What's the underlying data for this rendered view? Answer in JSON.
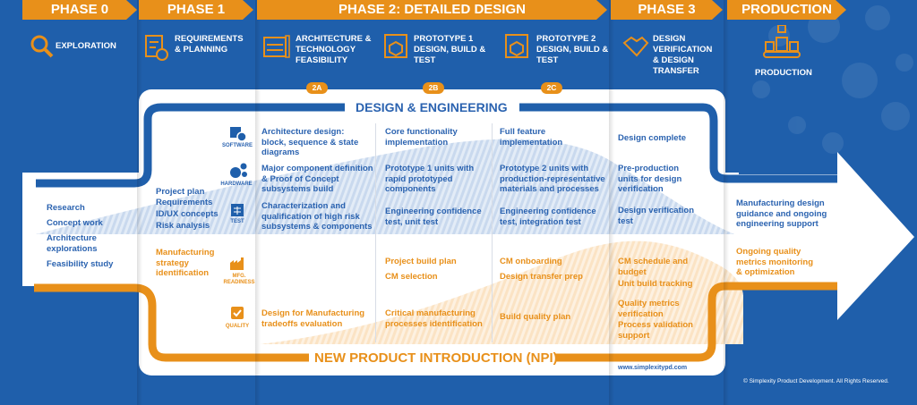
{
  "colors": {
    "blue": "#1f5fab",
    "orange": "#e8901a",
    "white": "#ffffff"
  },
  "phases": [
    "PHASE 0",
    "PHASE 1",
    "PHASE 2: DETAILED DESIGN",
    "PHASE 3",
    "PRODUCTION"
  ],
  "stages": [
    {
      "label": "EXPLORATION",
      "icon": "magnifier-icon"
    },
    {
      "label": "REQUIREMENTS & PLANNING",
      "icon": "checklist-icon"
    },
    {
      "label": "ARCHITECTURE & TECHNOLOGY FEASIBILITY",
      "icon": "blueprint-icon",
      "badge": "2A"
    },
    {
      "label": "PROTOTYPE 1 DESIGN, BUILD & TEST",
      "icon": "3d-printer-icon",
      "badge": "2B"
    },
    {
      "label": "PROTOTYPE 2 DESIGN, BUILD & TEST",
      "icon": "3d-printer-icon",
      "badge": "2C"
    },
    {
      "label": "DESIGN VERIFICATION & DESIGN TRANSFER",
      "icon": "handshake-icon"
    },
    {
      "label": "PRODUCTION",
      "icon": "assembly-line-icon"
    }
  ],
  "sections": {
    "design": "DESIGN & ENGINEERING",
    "npi": "NEW PRODUCT INTRODUCTION (NPI)"
  },
  "categories": {
    "software": "SOFTWARE",
    "hardware": "HARDWARE",
    "test": "TEST",
    "mfg": "MFG. READINESS",
    "quality": "QUALITY"
  },
  "phase0": [
    "Research",
    "Concept work",
    "Architecture explorations",
    "Feasibility study"
  ],
  "phase1": {
    "design": [
      "Project plan",
      "Requirements",
      "ID/UX concepts",
      "Risk analysis"
    ],
    "npi": "Manufacturing strategy identification"
  },
  "col2a": {
    "software": "Architecture design: block, sequence & state diagrams",
    "hardware": "Major component definition & Proof of Concept subsystems build",
    "test": "Characterization and qualification of high risk subsystems & components",
    "quality": "Design for Manufacturing tradeoffs evaluation"
  },
  "col2b": {
    "software": "Core functionality implementation",
    "hardware": "Prototype 1 units with rapid prototyped components",
    "test": "Engineering confidence test, unit test",
    "mfg1": "Project build plan",
    "mfg2": "CM selection",
    "quality": "Critical manufacturing processes identification"
  },
  "col2c": {
    "software": "Full feature implementation",
    "hardware": "Prototype 2 units with production-representative materials and processes",
    "test": "Engineering confidence test, integration test",
    "mfg1": "CM onboarding",
    "mfg2": "Design transfer prep",
    "quality": "Build quality plan"
  },
  "phase3": {
    "software": "Design complete",
    "hardware": "Pre-production units for design verification",
    "test": "Design verification test",
    "mfg1": "CM schedule and budget",
    "mfg2": "Unit build tracking",
    "quality1": "Quality metrics verification",
    "quality2": "Process validation support"
  },
  "production": {
    "design": "Manufacturing design guidance and ongoing engineering support",
    "npi": "Ongoing quality metrics monitoring & optimization"
  },
  "website": "www.simplexitypd.com",
  "copyright": "© Simplexity Product Development. All Rights Reserved."
}
